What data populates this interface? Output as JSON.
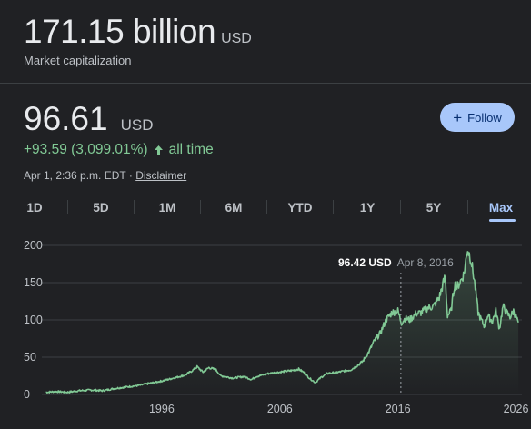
{
  "market_cap": {
    "value": "171.15 billion",
    "unit": "USD",
    "label": "Market capitalization"
  },
  "price": {
    "value": "96.61",
    "unit": "USD"
  },
  "change": {
    "text": "+93.59 (3,099.01%)",
    "arrow": "arrow-up-icon",
    "period": "all time"
  },
  "meta": {
    "timestamp": "Apr 1, 2:36 p.m. EDT",
    "separator": "·",
    "disclaimer": "Disclaimer"
  },
  "follow": {
    "label": "Follow",
    "icon": "plus-icon"
  },
  "tabs": [
    {
      "label": "1D",
      "active": false
    },
    {
      "label": "5D",
      "active": false
    },
    {
      "label": "1M",
      "active": false
    },
    {
      "label": "6M",
      "active": false
    },
    {
      "label": "YTD",
      "active": false
    },
    {
      "label": "1Y",
      "active": false
    },
    {
      "label": "5Y",
      "active": false
    },
    {
      "label": "Max",
      "active": true
    }
  ],
  "tooltip": {
    "value": "96.42 USD",
    "date": "Apr 8, 2016"
  },
  "colors": {
    "background": "#202124",
    "line": "#81c995",
    "accent": "#a8c7fa",
    "text_secondary": "#bdc1c6"
  },
  "chart_data": {
    "type": "line",
    "x_label_ticks": [
      "1996",
      "2006",
      "2016",
      "2026"
    ],
    "y_ticks": [
      "0",
      "50",
      "100",
      "150",
      "200"
    ],
    "ylim": [
      0,
      200
    ],
    "xlim": [
      1986,
      2026.5
    ],
    "grid": true,
    "series": [
      {
        "points": [
          [
            1986.2,
            3
          ],
          [
            1987.0,
            4
          ],
          [
            1988.0,
            3
          ],
          [
            1989.0,
            5
          ],
          [
            1990.0,
            6
          ],
          [
            1991.0,
            5
          ],
          [
            1992.0,
            8
          ],
          [
            1993.0,
            10
          ],
          [
            1994.0,
            12
          ],
          [
            1995.0,
            15
          ],
          [
            1996.0,
            18
          ],
          [
            1997.0,
            22
          ],
          [
            1998.0,
            26
          ],
          [
            1998.6,
            32
          ],
          [
            1999.0,
            37
          ],
          [
            1999.5,
            30
          ],
          [
            2000.0,
            36
          ],
          [
            2000.6,
            33
          ],
          [
            2001.0,
            25
          ],
          [
            2002.0,
            22
          ],
          [
            2003.0,
            24
          ],
          [
            2003.6,
            20
          ],
          [
            2004.0,
            24
          ],
          [
            2005.0,
            28
          ],
          [
            2006.0,
            30
          ],
          [
            2007.0,
            32
          ],
          [
            2007.6,
            34
          ],
          [
            2008.0,
            30
          ],
          [
            2008.5,
            22
          ],
          [
            2009.0,
            16
          ],
          [
            2009.5,
            23
          ],
          [
            2010.0,
            28
          ],
          [
            2011.0,
            30
          ],
          [
            2012.0,
            33
          ],
          [
            2012.5,
            38
          ],
          [
            2013.0,
            44
          ],
          [
            2013.5,
            56
          ],
          [
            2014.0,
            72
          ],
          [
            2014.5,
            82
          ],
          [
            2015.0,
            100
          ],
          [
            2015.5,
            110
          ],
          [
            2016.0,
            112
          ],
          [
            2016.3,
            96
          ],
          [
            2016.6,
            102
          ],
          [
            2017.0,
            100
          ],
          [
            2017.5,
            108
          ],
          [
            2018.0,
            110
          ],
          [
            2018.5,
            116
          ],
          [
            2019.0,
            118
          ],
          [
            2019.5,
            130
          ],
          [
            2020.0,
            158
          ],
          [
            2020.2,
            106
          ],
          [
            2020.5,
            112
          ],
          [
            2020.8,
            148
          ],
          [
            2021.0,
            144
          ],
          [
            2021.3,
            152
          ],
          [
            2021.6,
            162
          ],
          [
            2021.9,
            196
          ],
          [
            2022.2,
            180
          ],
          [
            2022.5,
            150
          ],
          [
            2022.8,
            110
          ],
          [
            2023.0,
            102
          ],
          [
            2023.3,
            92
          ],
          [
            2023.6,
            106
          ],
          [
            2024.0,
            98
          ],
          [
            2024.3,
            112
          ],
          [
            2024.6,
            88
          ],
          [
            2024.9,
            118
          ],
          [
            2025.2,
            110
          ],
          [
            2025.5,
            104
          ],
          [
            2025.8,
            112
          ],
          [
            2026.2,
            96.61
          ]
        ]
      }
    ],
    "crosshair": {
      "x": 2016.25,
      "y": 96.42
    }
  }
}
